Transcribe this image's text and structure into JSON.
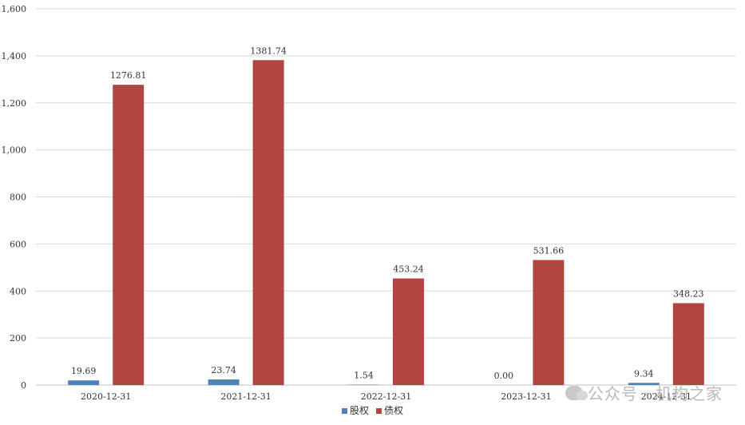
{
  "chart_data": {
    "type": "bar",
    "categories": [
      "2020-12-31",
      "2021-12-31",
      "2022-12-31",
      "2023-12-31",
      "2024-12-31"
    ],
    "series": [
      {
        "name": "股权",
        "values": [
          19.69,
          23.74,
          1.54,
          0.0,
          9.34
        ],
        "labels": [
          "19.69",
          "23.74",
          "1.54",
          "0.00",
          "9.34"
        ],
        "color": "#4f81bd"
      },
      {
        "name": "债权",
        "values": [
          1276.81,
          1381.74,
          453.24,
          531.66,
          348.23
        ],
        "labels": [
          "1276.81",
          "1381.74",
          "453.24",
          "531.66",
          "348.23"
        ],
        "color": "#b0463f"
      }
    ],
    "yticks": [
      "0",
      "200",
      "400",
      "600",
      "800",
      "1,000",
      "1,200",
      "1,400",
      "1,600"
    ],
    "ylim": [
      0,
      1600
    ],
    "grid": true,
    "legend": "bottom-center",
    "title": "",
    "xlabel": "",
    "ylabel": ""
  },
  "watermark": {
    "text": "公众号 · 机构之家",
    "icon": "wechat-icon"
  }
}
